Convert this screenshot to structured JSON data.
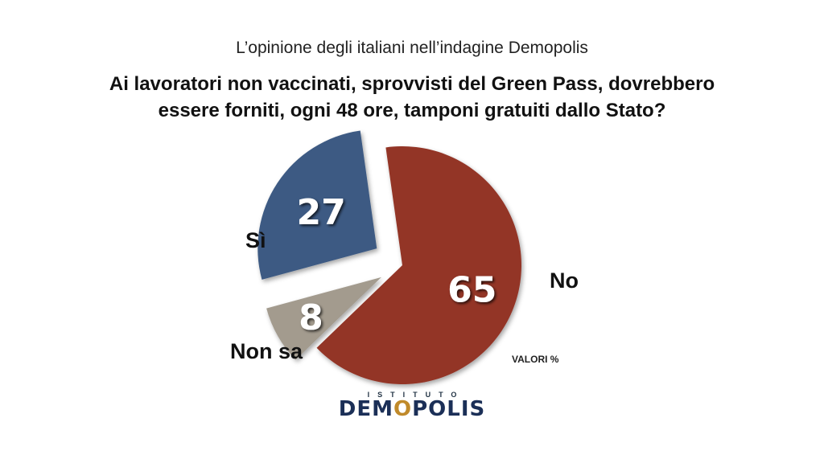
{
  "subtitle": "L’opinione degli italiani nell’indagine Demopolis",
  "title_line1": "Ai lavoratori non vaccinati, sprovvisti del Green Pass, dovrebbero",
  "title_line2": "essere forniti, ogni 48 ore, tamponi gratuiti dallo Stato?",
  "note": "VALORI %",
  "logo": {
    "top": "ISTITUTO",
    "pre": "DEM",
    "o": "O",
    "post": "POLIS"
  },
  "chart_data": {
    "type": "pie",
    "title": "Ai lavoratori non vaccinati, sprovvisti del Green Pass, dovrebbero essere forniti, ogni 48 ore, tamponi gratuiti dallo Stato?",
    "unit": "%",
    "slices": [
      {
        "label": "No",
        "value": 65,
        "color": "#933428"
      },
      {
        "label": "Non sa",
        "value": 8,
        "color": "#a39b8e"
      },
      {
        "label": "Sì",
        "value": 27,
        "color": "#3c5a83"
      }
    ]
  }
}
